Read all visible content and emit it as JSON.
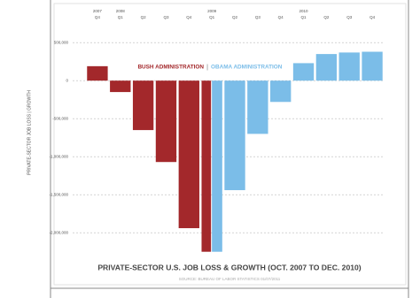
{
  "chart_data": {
    "type": "bar",
    "title": "PRIVATE-SECTOR U.S. JOB LOSS & GROWTH (OCT. 2007 TO DEC. 2010)",
    "source": "SOURCE: BUREAU OF LABOR STATISTICS 01/07/2011",
    "y_label": "PRIVATE-SECTOR JOB LOSS | GROWTH",
    "legend_separator": "|",
    "year_labels": [
      "2007",
      "2008",
      null,
      null,
      null,
      "2009",
      null,
      null,
      null,
      "2010",
      null,
      null,
      null
    ],
    "categories": [
      "Q4",
      "Q1",
      "Q2",
      "Q3",
      "Q4",
      "Q1",
      "Q2",
      "Q3",
      "Q4",
      "Q1",
      "Q2",
      "Q3",
      "Q4"
    ],
    "series": [
      {
        "name": "BUSH ADMINISTRATION",
        "color": "#a3282b",
        "values": [
          190000,
          -150000,
          -650000,
          -1070000,
          -1940000,
          -2250000,
          null,
          null,
          null,
          null,
          null,
          null,
          null
        ]
      },
      {
        "name": "OBAMA ADMINISTRATION",
        "color": "#7bbde8",
        "values": [
          null,
          null,
          null,
          null,
          null,
          -2250000,
          -1440000,
          -700000,
          -280000,
          230000,
          350000,
          370000,
          380000
        ]
      }
    ],
    "ylim": [
      -2300000,
      700000
    ],
    "yticks": [
      {
        "value": 500000,
        "label": "500,000"
      },
      0,
      {
        "value": -500000,
        "label": "-500,000"
      },
      {
        "value": -1000000,
        "label": "-1,000,000"
      },
      {
        "value": -1500000,
        "label": "-1,500,000"
      },
      {
        "value": -2000000,
        "label": "-2,000,000"
      }
    ],
    "grid": true
  }
}
